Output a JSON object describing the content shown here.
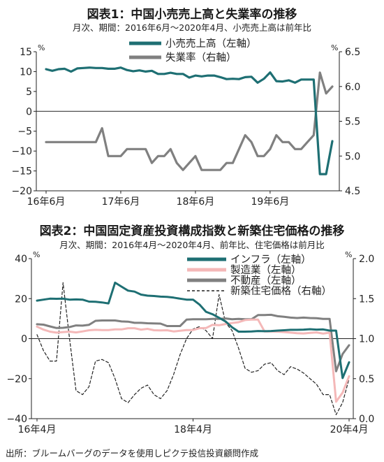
{
  "chart_data": [
    {
      "type": "line",
      "title": "図表1：中国小売売上高と失業率の推移",
      "subtitle": "月次、期間：2016年6月～2020年4月、小売売上高は前年比",
      "left_unit": "%",
      "right_unit": "%",
      "y_left": {
        "range": [
          -20,
          15
        ],
        "ticks": [
          "15",
          "10",
          "5",
          "0",
          "−5",
          "−10",
          "−15",
          "−20"
        ]
      },
      "y_right": {
        "range": [
          4.5,
          6.5
        ],
        "ticks": [
          "6.5",
          "6.0",
          "5.5",
          "5.0",
          "4.5"
        ]
      },
      "x_ticks": [
        "16年6月",
        "17年6月",
        "18年6月",
        "19年6月"
      ],
      "x_tick_index": [
        0,
        12,
        24,
        36
      ],
      "n_points": 47,
      "grid": false,
      "legend_position": "top-right",
      "series": [
        {
          "name": "小売売上高（左軸）",
          "axis": "left",
          "color": "#1e6f73",
          "values": [
            10.6,
            10.2,
            10.6,
            10.7,
            10.0,
            10.8,
            10.9,
            11.0,
            10.9,
            10.9,
            10.7,
            10.7,
            11.0,
            10.4,
            10.1,
            10.3,
            10.0,
            10.2,
            9.4,
            9.4,
            9.7,
            9.4,
            9.4,
            8.5,
            9.0,
            8.8,
            9.0,
            9.0,
            8.6,
            8.1,
            8.2,
            8.1,
            8.6,
            8.7,
            7.2,
            8.2,
            9.8,
            7.6,
            7.5,
            7.8,
            7.2,
            8.0,
            8.0,
            8.0,
            -15.8,
            -15.8,
            -7.5
          ]
        },
        {
          "name": "失業率（右軸）",
          "axis": "right",
          "color": "#808080",
          "values": [
            5.2,
            5.2,
            5.2,
            5.2,
            5.2,
            5.2,
            5.2,
            5.2,
            5.2,
            5.4,
            5.0,
            5.0,
            5.0,
            5.1,
            5.1,
            5.1,
            5.1,
            4.9,
            5.0,
            5.0,
            5.1,
            4.9,
            4.8,
            4.9,
            5.0,
            4.8,
            4.8,
            4.8,
            4.8,
            4.9,
            4.9,
            5.1,
            5.3,
            5.2,
            5.0,
            5.0,
            5.1,
            5.3,
            5.2,
            5.2,
            5.1,
            5.1,
            5.2,
            5.3,
            6.2,
            5.9,
            6.0
          ]
        }
      ]
    },
    {
      "type": "line",
      "title": "図表2：中国固定資産投資構成指数と新築住宅価格の推移",
      "subtitle": "月次、期間：2016年4月～2020年4月、前年比、住宅価格は前月比",
      "left_unit": "%",
      "right_unit": "%",
      "y_left": {
        "range": [
          -40,
          40
        ],
        "ticks": [
          "40",
          "20",
          "0",
          "−20",
          "−40"
        ]
      },
      "y_right": {
        "range": [
          0.0,
          2.0
        ],
        "ticks": [
          "2.0",
          "1.5",
          "1.0",
          "0.5",
          "0.0"
        ]
      },
      "x_ticks": [
        "16年4月",
        "18年4月",
        "20年4月"
      ],
      "x_tick_index": [
        0,
        24,
        48
      ],
      "n_points": 49,
      "grid": false,
      "legend_position": "top-right",
      "series": [
        {
          "name": "インフラ（左軸）",
          "axis": "left",
          "color": "#1e6f73",
          "values": [
            19,
            19.5,
            20,
            19.9,
            20,
            19.5,
            19.6,
            19.5,
            18.5,
            18.4,
            18.1,
            17.6,
            28,
            26,
            24,
            23.5,
            22,
            21.5,
            21.3,
            21,
            20.9,
            20.5,
            20,
            19.5,
            19.5,
            17,
            13.4,
            12.2,
            10.4,
            8.6,
            5.7,
            3.5,
            3.5,
            3.6,
            3.8,
            3.7,
            3.8,
            4.0,
            4.2,
            4.4,
            4.4,
            4.5,
            4.7,
            4.5,
            4.6,
            4.0,
            4.0,
            -19.7,
            -11.8
          ]
        },
        {
          "name": "製造業（左軸）",
          "axis": "left",
          "color": "#f4b8b8",
          "values": [
            6.0,
            4.5,
            3.5,
            3.0,
            3.3,
            3.5,
            3.1,
            3.6,
            4.2,
            4.4,
            4.3,
            4.3,
            4.6,
            4.6,
            5.2,
            5.2,
            4.5,
            4.9,
            4.2,
            4.1,
            4.2,
            3.6,
            3.9,
            4.3,
            4.3,
            5.2,
            5.3,
            6.9,
            6.7,
            7.3,
            7.8,
            8.2,
            9.3,
            9.5,
            9.5,
            3.6,
            3.6,
            3.5,
            3.3,
            3.0,
            2.7,
            2.6,
            2.9,
            3.1,
            2.5,
            3.0,
            -31.5,
            -27.0,
            -18.8
          ]
        },
        {
          "name": "不動産（左軸）",
          "axis": "left",
          "color": "#808080",
          "values": [
            7.2,
            7.0,
            6.1,
            5.3,
            5.4,
            5.8,
            6.6,
            6.5,
            6.9,
            8.9,
            9.1,
            9.1,
            9.1,
            8.6,
            8.5,
            7.9,
            7.9,
            7.7,
            7.6,
            7.5,
            6.3,
            6.3,
            6.3,
            9.5,
            9.7,
            9.7,
            9.7,
            9.9,
            9.9,
            10.1,
            9.7,
            9.9,
            9.7,
            9.7,
            11.8,
            11.8,
            11.9,
            11.2,
            10.9,
            10.5,
            10.3,
            10.5,
            10.3,
            10.2,
            9.9,
            9.9,
            -16.3,
            -7.7,
            -3.3
          ]
        },
        {
          "name": "新築住宅価格（右軸）",
          "axis": "right",
          "color": "#222222",
          "style": "dashed",
          "values": [
            1.05,
            0.85,
            0.72,
            0.72,
            1.7,
            1.0,
            0.35,
            0.3,
            0.4,
            0.72,
            0.74,
            0.7,
            0.5,
            0.25,
            0.2,
            0.3,
            0.38,
            0.42,
            0.3,
            0.25,
            0.35,
            0.55,
            0.8,
            1.0,
            1.12,
            1.15,
            1.1,
            1.0,
            1.55,
            1.2,
            1.1,
            0.88,
            0.63,
            0.58,
            0.6,
            0.68,
            0.7,
            0.6,
            0.55,
            0.65,
            0.62,
            0.57,
            0.5,
            0.43,
            0.3,
            0.3,
            0.05,
            0.2,
            0.5
          ]
        }
      ]
    }
  ],
  "footer": "出所：ブルームバーグのデータを使用しピクテ投信投資顧問作成"
}
